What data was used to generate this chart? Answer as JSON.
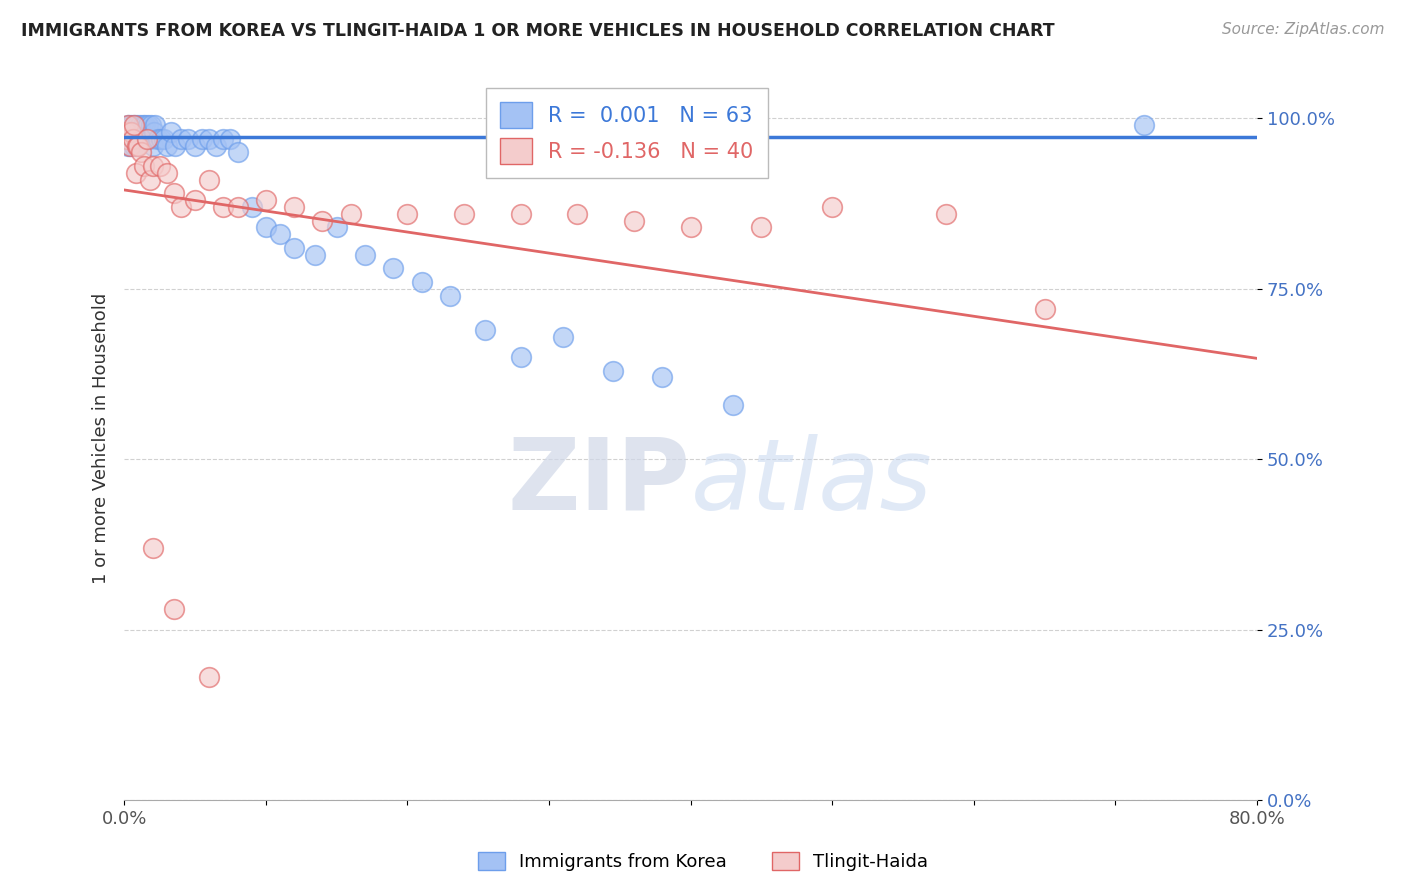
{
  "title": "IMMIGRANTS FROM KOREA VS TLINGIT-HAIDA 1 OR MORE VEHICLES IN HOUSEHOLD CORRELATION CHART",
  "source": "Source: ZipAtlas.com",
  "ylabel": "1 or more Vehicles in Household",
  "xmin": 0.0,
  "xmax": 0.8,
  "ymin": 0.0,
  "ymax": 1.06,
  "blue_R": 0.001,
  "blue_N": 63,
  "pink_R": -0.136,
  "pink_N": 40,
  "blue_color": "#a4c2f4",
  "pink_color": "#f4cccc",
  "blue_edge_color": "#6d9eeb",
  "pink_edge_color": "#e06666",
  "blue_line_color": "#3c78d8",
  "pink_line_color": "#e06666",
  "legend_label_blue": "Immigrants from Korea",
  "legend_label_pink": "Tlingit-Haida",
  "watermark_zip": "ZIP",
  "watermark_atlas": "atlas",
  "blue_line_y0": 0.972,
  "blue_line_y1": 0.972,
  "pink_line_y0": 0.895,
  "pink_line_y1": 0.648,
  "blue_scatter_x": [
    0.001,
    0.002,
    0.003,
    0.003,
    0.004,
    0.004,
    0.005,
    0.005,
    0.006,
    0.006,
    0.007,
    0.007,
    0.008,
    0.008,
    0.009,
    0.009,
    0.01,
    0.01,
    0.011,
    0.012,
    0.012,
    0.013,
    0.014,
    0.015,
    0.016,
    0.017,
    0.018,
    0.019,
    0.02,
    0.021,
    0.022,
    0.024,
    0.026,
    0.028,
    0.03,
    0.033,
    0.036,
    0.04,
    0.045,
    0.05,
    0.055,
    0.06,
    0.065,
    0.07,
    0.075,
    0.08,
    0.09,
    0.1,
    0.11,
    0.12,
    0.135,
    0.15,
    0.17,
    0.19,
    0.21,
    0.23,
    0.255,
    0.28,
    0.31,
    0.345,
    0.38,
    0.43,
    0.72
  ],
  "blue_scatter_y": [
    0.98,
    0.97,
    0.99,
    0.96,
    0.98,
    0.97,
    0.99,
    0.96,
    0.98,
    0.97,
    0.99,
    0.96,
    0.98,
    0.97,
    0.99,
    0.96,
    0.98,
    0.97,
    0.99,
    0.98,
    0.97,
    0.99,
    0.97,
    0.99,
    0.97,
    0.99,
    0.97,
    0.99,
    0.96,
    0.98,
    0.99,
    0.97,
    0.97,
    0.97,
    0.96,
    0.98,
    0.96,
    0.97,
    0.97,
    0.96,
    0.97,
    0.97,
    0.96,
    0.97,
    0.97,
    0.95,
    0.87,
    0.84,
    0.83,
    0.81,
    0.8,
    0.84,
    0.8,
    0.78,
    0.76,
    0.74,
    0.69,
    0.65,
    0.68,
    0.63,
    0.62,
    0.58,
    0.99
  ],
  "pink_scatter_x": [
    0.001,
    0.002,
    0.003,
    0.004,
    0.005,
    0.006,
    0.007,
    0.008,
    0.009,
    0.01,
    0.012,
    0.014,
    0.016,
    0.018,
    0.02,
    0.025,
    0.03,
    0.035,
    0.04,
    0.05,
    0.06,
    0.07,
    0.08,
    0.1,
    0.12,
    0.14,
    0.16,
    0.2,
    0.24,
    0.28,
    0.32,
    0.36,
    0.4,
    0.45,
    0.5,
    0.58,
    0.65,
    0.02,
    0.035,
    0.06
  ],
  "pink_scatter_y": [
    0.98,
    0.97,
    0.99,
    0.96,
    0.98,
    0.97,
    0.99,
    0.92,
    0.96,
    0.96,
    0.95,
    0.93,
    0.97,
    0.91,
    0.93,
    0.93,
    0.92,
    0.89,
    0.87,
    0.88,
    0.91,
    0.87,
    0.87,
    0.88,
    0.87,
    0.85,
    0.86,
    0.86,
    0.86,
    0.86,
    0.86,
    0.85,
    0.84,
    0.84,
    0.87,
    0.86,
    0.72,
    0.37,
    0.28,
    0.18
  ]
}
